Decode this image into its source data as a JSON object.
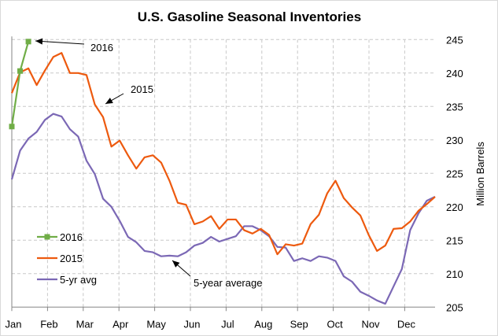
{
  "chart_data": {
    "type": "line",
    "title": "U.S. Gasoline Seasonal Inventories",
    "ylabel": "Million Barrels",
    "xlabel": "",
    "x_tick_labels": [
      "Jan",
      "Feb",
      "Mar",
      "Apr",
      "May",
      "Jun",
      "Jul",
      "Aug",
      "Sep",
      "Oct",
      "Nov",
      "Dec"
    ],
    "y_ticks": [
      205,
      210,
      215,
      220,
      225,
      230,
      235,
      240,
      245
    ],
    "ylim": [
      205,
      245
    ],
    "y_axis_side": "right",
    "grid": "dashed",
    "legend_position": "bottom-left",
    "x_unit": "week of year",
    "series": [
      {
        "name": "2016",
        "color": "#70ad47",
        "marker": "square",
        "values": [
          232.0,
          240.3,
          244.7
        ]
      },
      {
        "name": "2015",
        "color": "#ed5a0f",
        "values": [
          237.0,
          240.1,
          240.7,
          238.2,
          240.4,
          242.4,
          243.0,
          240.0,
          240.0,
          239.7,
          235.3,
          233.4,
          229.0,
          229.9,
          227.7,
          225.7,
          227.4,
          227.7,
          226.6,
          223.9,
          220.6,
          220.3,
          217.4,
          217.8,
          218.6,
          216.7,
          218.1,
          218.1,
          216.5,
          216.0,
          216.7,
          215.8,
          212.9,
          214.4,
          214.2,
          214.5,
          217.4,
          218.8,
          222.0,
          223.9,
          221.3,
          219.9,
          218.7,
          215.8,
          213.4,
          214.2,
          216.7,
          216.8,
          217.8,
          219.4,
          220.4,
          221.5
        ]
      },
      {
        "name": "5-yr avg",
        "color": "#7b68b5",
        "values": [
          224.1,
          228.4,
          230.2,
          231.2,
          233.0,
          233.9,
          233.5,
          231.6,
          230.5,
          226.9,
          224.9,
          221.2,
          220.0,
          217.9,
          215.5,
          214.7,
          213.4,
          213.2,
          212.6,
          212.7,
          212.6,
          213.2,
          214.2,
          214.6,
          215.5,
          214.8,
          215.2,
          215.6,
          217.1,
          217.1,
          216.5,
          215.6,
          214.0,
          213.9,
          211.9,
          212.3,
          211.9,
          212.6,
          212.4,
          211.9,
          209.6,
          208.8,
          207.3,
          206.7,
          206.0,
          205.5,
          208.1,
          210.7,
          216.5,
          219.0,
          220.9,
          221.5
        ]
      }
    ],
    "annotations": [
      {
        "text": "2016",
        "points_to": "2016 series week 3"
      },
      {
        "text": "2015",
        "points_to": "2015 series"
      },
      {
        "text": "5-year average",
        "points_to": "5-yr avg series"
      }
    ]
  }
}
